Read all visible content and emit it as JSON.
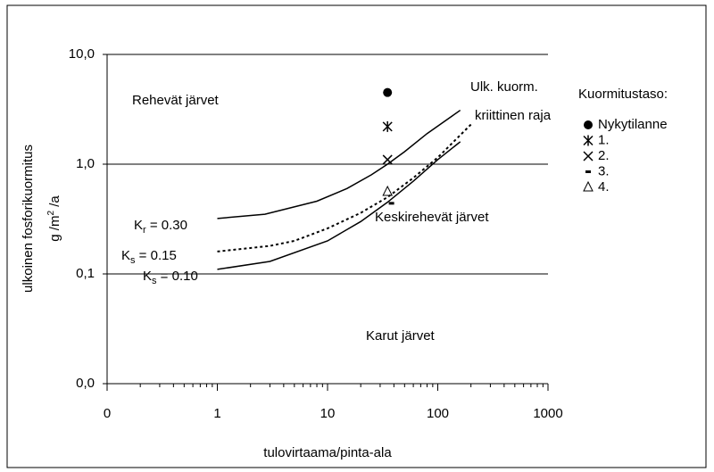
{
  "chart_data": {
    "type": "line",
    "y_label": "ulkoinen fosforikuormitus",
    "y_unit": {
      "pre": "g /m",
      "sup": "2",
      "post": " /a"
    },
    "x_label": "tulovirtaama/pinta-ala",
    "xscale": "log",
    "yscale": "log",
    "xlim": [
      0.1,
      1000
    ],
    "ylim": [
      0.01,
      10
    ],
    "xticks": [
      {
        "value": 0.1,
        "label": "0"
      },
      1,
      10,
      100,
      1000
    ],
    "yticks": [
      {
        "value": 0.01,
        "label": "0,0"
      },
      {
        "value": 0.1,
        "label": "0,1"
      },
      {
        "value": 1,
        "label": "1,0"
      },
      {
        "value": 10,
        "label": "10,0"
      }
    ],
    "grid": true,
    "curves": [
      {
        "label": {
          "base": "K",
          "sub": "r",
          "rest": " = 0.30"
        },
        "style": "solid",
        "color": "#000000",
        "x": [
          1,
          2.7,
          8,
          15,
          25,
          35,
          50,
          80,
          160
        ],
        "values": [
          0.32,
          0.35,
          0.46,
          0.6,
          0.8,
          1.0,
          1.3,
          1.9,
          3.1
        ]
      },
      {
        "label": {
          "base": "K",
          "sub": "s",
          "rest": " = 0.15"
        },
        "style": "dotted",
        "color": "#000000",
        "x": [
          1,
          3,
          5,
          10,
          20,
          35,
          60,
          100,
          200
        ],
        "values": [
          0.16,
          0.18,
          0.2,
          0.26,
          0.36,
          0.5,
          0.75,
          1.15,
          2.3
        ]
      },
      {
        "label": {
          "base": "K",
          "sub": "s",
          "rest": " = 0.10"
        },
        "style": "solid",
        "color": "#000000",
        "x": [
          1,
          3,
          10,
          20,
          35,
          60,
          100,
          160
        ],
        "values": [
          0.11,
          0.13,
          0.2,
          0.3,
          0.45,
          0.7,
          1.1,
          1.6
        ]
      }
    ],
    "legend_title": "Kuormitustaso:",
    "series": [
      {
        "name": "Nykytilanne",
        "marker": "circle",
        "color": "#000000",
        "x": [
          35
        ],
        "values": [
          4.5
        ]
      },
      {
        "name": "1.",
        "marker": "star",
        "color": "#000000",
        "x": [
          35
        ],
        "values": [
          2.2
        ]
      },
      {
        "name": "2.",
        "marker": "cross",
        "color": "#000000",
        "x": [
          35
        ],
        "values": [
          1.1
        ]
      },
      {
        "name": "3.",
        "marker": "dash",
        "color": "#000000",
        "x": [
          38
        ],
        "values": [
          0.44
        ]
      },
      {
        "name": "4.",
        "marker": "triangle",
        "color": "#000000",
        "x": [
          35
        ],
        "values": [
          0.56
        ]
      }
    ],
    "annotations": [
      "Rehevät järvet",
      "Ulk. kuorm.",
      "kriittinen raja",
      "Keskirehevät järvet",
      "Karut järvet"
    ]
  }
}
